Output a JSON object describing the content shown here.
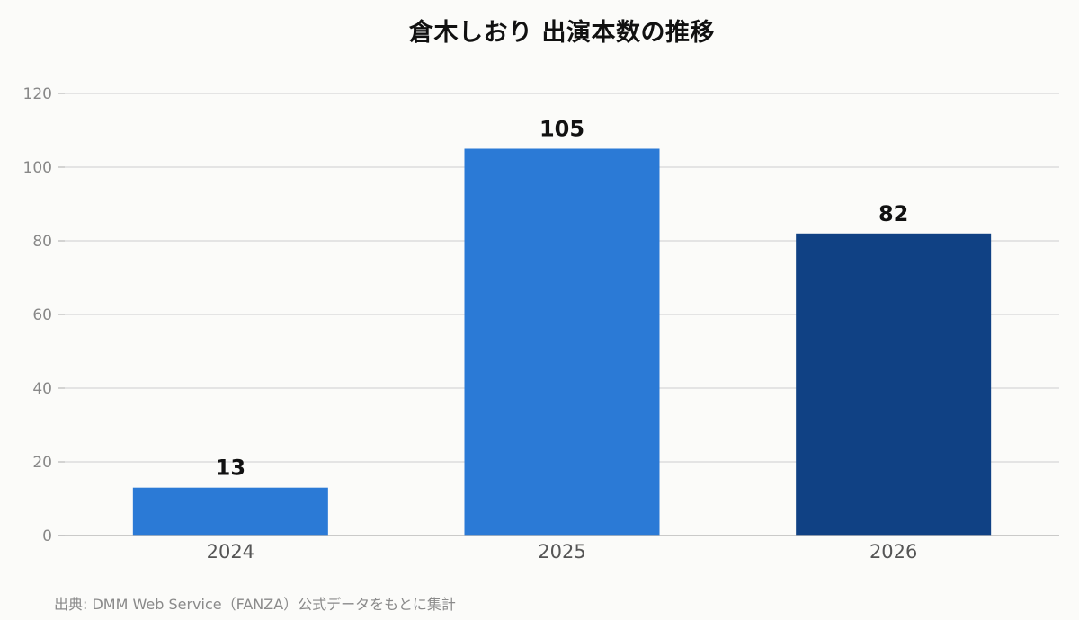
{
  "chart_data": {
    "type": "bar",
    "title": "倉木しおり 出演本数の推移",
    "categories": [
      "2024",
      "2025",
      "2026"
    ],
    "values": [
      13,
      105,
      82
    ],
    "data_labels": [
      "13",
      "105",
      "82"
    ],
    "bar_colors": [
      "#2b7ad6",
      "#2b7ad6",
      "#104184"
    ],
    "ylim": [
      0,
      120
    ],
    "yticks": [
      0,
      20,
      40,
      60,
      80,
      100,
      120
    ],
    "xlabel": "",
    "ylabel": "",
    "grid": true,
    "legend": "none"
  },
  "source_note": "出典: DMM Web Service（FANZA）公式データをもとに集計",
  "colors": {
    "background": "#fbfbf9",
    "grid": "#dddddd",
    "axis": "#b9b9b9",
    "tick_label": "#888888",
    "category_label": "#555555",
    "data_label": "#111111"
  }
}
